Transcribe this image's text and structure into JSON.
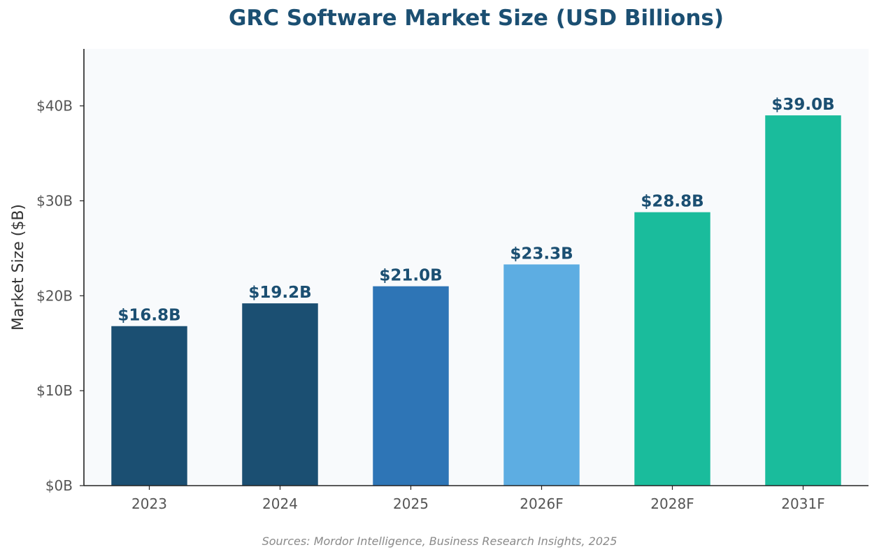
{
  "chart_data": {
    "type": "bar",
    "title": "GRC Software Market Size (USD Billions)",
    "xlabel": "",
    "ylabel": "Market Size ($B)",
    "categories": [
      "2023",
      "2024",
      "2025",
      "2026F",
      "2028F",
      "2031F"
    ],
    "values": [
      16.8,
      19.2,
      21.0,
      23.3,
      28.8,
      39.0
    ],
    "value_labels": [
      "$16.8B",
      "$19.2B",
      "$21.0B",
      "$23.3B",
      "$28.8B",
      "$39.0B"
    ],
    "bar_colors": [
      "#1b4f72",
      "#1b4f72",
      "#2e75b6",
      "#5dade2",
      "#1abc9c",
      "#1abc9c"
    ],
    "ylim": [
      0,
      46
    ],
    "yticks": [
      0,
      10,
      20,
      30,
      40
    ],
    "ytick_labels": [
      "$0B",
      "$10B",
      "$20B",
      "$30B",
      "$40B"
    ],
    "grid": false,
    "plot_background": "#f8fafc"
  },
  "source_note": "Sources: Mordor Intelligence, Business Research Insights, 2025"
}
